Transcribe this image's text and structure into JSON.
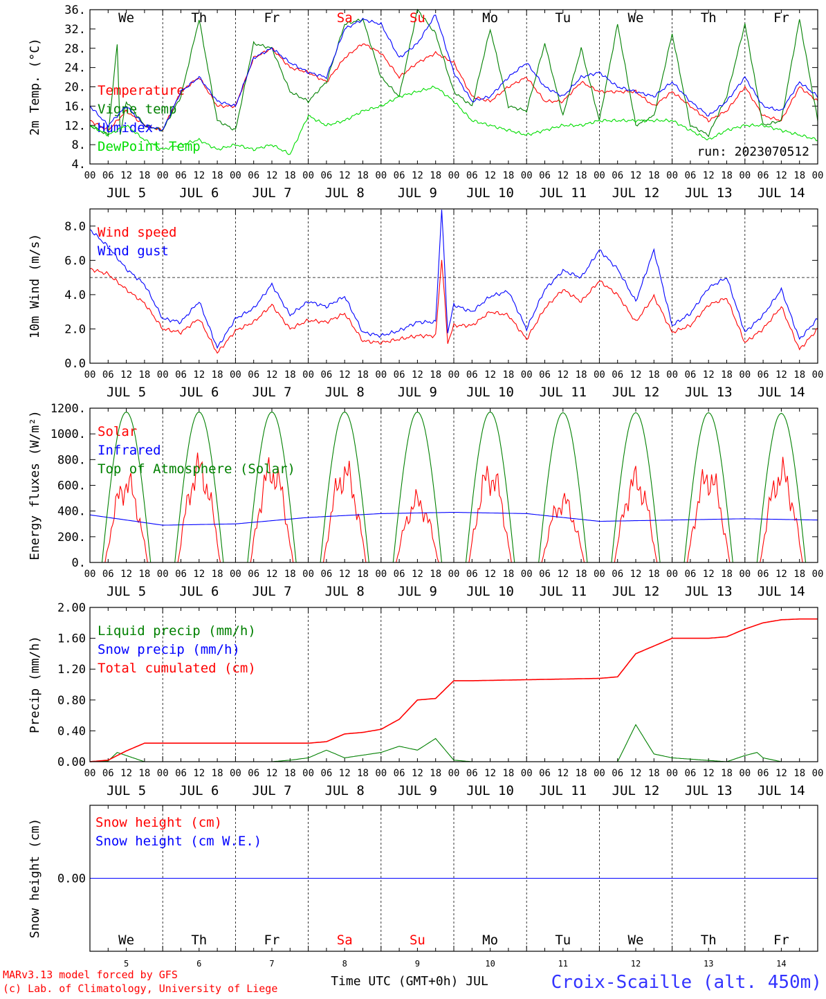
{
  "days": [
    "JUL 5",
    "JUL 6",
    "JUL 7",
    "JUL 8",
    "JUL 9",
    "JUL 10",
    "JUL 11",
    "JUL 12",
    "JUL 13",
    "JUL 14"
  ],
  "hour_ticks": [
    "00",
    "06",
    "12",
    "18"
  ],
  "final_tick": "00",
  "weekdays": [
    {
      "label": "We",
      "color": "#000000"
    },
    {
      "label": "Th",
      "color": "#000000"
    },
    {
      "label": "Fr",
      "color": "#000000"
    },
    {
      "label": "Sa",
      "color": "#ff0000"
    },
    {
      "label": "Su",
      "color": "#ff0000"
    },
    {
      "label": "Mo",
      "color": "#000000"
    },
    {
      "label": "Tu",
      "color": "#000000"
    },
    {
      "label": "We",
      "color": "#000000"
    },
    {
      "label": "Th",
      "color": "#000000"
    },
    {
      "label": "Fr",
      "color": "#000000"
    }
  ],
  "bottom_day_numbers": [
    "5",
    "6",
    "7",
    "8",
    "9",
    "10",
    "11",
    "12",
    "13",
    "14"
  ],
  "footer": {
    "left_line1": "MARv3.13 model forced by GFS",
    "left_line2": "(c) Lab. of Climatology, University of Liege",
    "center": "Time UTC (GMT+0h) JUL",
    "right": "Croix-Scaille (alt. 450m)"
  },
  "colors": {
    "red": "#ff0000",
    "green": "#008000",
    "blue": "#0000ff",
    "lightgreen": "#00dd00",
    "purple": "#800080"
  },
  "chart_data": [
    {
      "type": "line",
      "ylabel": "2m Temp. (°C)",
      "ylim": [
        4,
        36
      ],
      "yticks": [
        "36.",
        "32.",
        "28.",
        "24.",
        "20.",
        "16.",
        "12.",
        "8.",
        "4."
      ],
      "annotation": "run: 2023070512",
      "series": [
        {
          "name": "Temperature",
          "color": "#ff0000",
          "t": [
            0,
            6,
            12,
            18,
            24,
            30,
            36,
            42,
            48,
            54,
            60,
            66,
            72,
            78,
            84,
            90,
            96,
            102,
            108,
            114,
            120,
            126,
            132,
            138,
            144,
            150,
            156,
            162,
            168,
            174,
            180,
            186,
            192,
            198,
            204,
            210,
            216,
            222,
            228,
            234,
            240
          ],
          "values": [
            13,
            11,
            15,
            12,
            11,
            19,
            22,
            16,
            16,
            26,
            28,
            24,
            23,
            21,
            26,
            29,
            27,
            22,
            25,
            27,
            25,
            18,
            17,
            20,
            22,
            17,
            17,
            21,
            19,
            19,
            19,
            16,
            19,
            16,
            13,
            15,
            20,
            14,
            13,
            20,
            17
          ]
        },
        {
          "name": "Vigne temp",
          "color": "#008000",
          "t": [
            0,
            6,
            9,
            10,
            12,
            18,
            24,
            30,
            36,
            42,
            48,
            54,
            60,
            66,
            72,
            78,
            84,
            90,
            96,
            102,
            108,
            114,
            120,
            126,
            132,
            138,
            144,
            150,
            156,
            162,
            168,
            174,
            180,
            186,
            192,
            198,
            204,
            210,
            216,
            222,
            228,
            234,
            240
          ],
          "values": [
            12,
            10,
            29,
            10,
            17,
            12,
            11,
            18,
            34,
            13,
            11,
            29,
            28,
            19,
            17,
            21,
            33,
            34,
            22,
            18,
            36,
            31,
            19,
            16,
            32,
            16,
            15,
            29,
            14,
            28,
            13,
            33,
            12,
            14,
            31,
            12,
            10,
            18,
            33,
            12,
            13,
            34,
            13
          ]
        },
        {
          "name": "Humidex",
          "color": "#0000ff",
          "t": [
            0,
            6,
            12,
            18,
            24,
            30,
            36,
            42,
            48,
            54,
            60,
            66,
            72,
            78,
            84,
            90,
            96,
            102,
            108,
            114,
            120,
            126,
            132,
            138,
            144,
            150,
            156,
            162,
            168,
            174,
            180,
            186,
            192,
            198,
            204,
            210,
            216,
            222,
            228,
            234,
            240
          ],
          "values": [
            16,
            12,
            16,
            12,
            11,
            19,
            22,
            17,
            16,
            26,
            28,
            25,
            23,
            22,
            32,
            34,
            33,
            26,
            29,
            35,
            23,
            17,
            18,
            22,
            25,
            20,
            18,
            22,
            23,
            20,
            19,
            18,
            21,
            17,
            14,
            17,
            22,
            16,
            15,
            21,
            18
          ]
        },
        {
          "name": "DewPoint Temp",
          "color": "#00dd00",
          "t": [
            0,
            6,
            12,
            18,
            24,
            30,
            36,
            42,
            48,
            54,
            60,
            66,
            72,
            78,
            84,
            90,
            96,
            102,
            108,
            114,
            120,
            126,
            132,
            138,
            144,
            150,
            156,
            162,
            168,
            174,
            180,
            186,
            192,
            198,
            204,
            210,
            216,
            222,
            228,
            234,
            240
          ],
          "values": [
            12,
            10,
            12,
            9,
            7,
            8,
            9,
            7,
            8,
            7,
            8,
            6,
            14,
            12,
            13,
            15,
            16,
            18,
            19,
            20,
            17,
            13,
            12,
            11,
            10,
            11,
            12,
            12,
            13,
            13,
            13,
            13,
            13,
            11,
            9,
            11,
            12,
            12,
            11,
            10,
            9
          ]
        }
      ]
    },
    {
      "type": "line",
      "ylabel": "10m Wind (m/s)",
      "ylim": [
        0,
        9
      ],
      "yticks": [
        "8.0",
        "6.0",
        "4.0",
        "2.0",
        "0.0"
      ],
      "reference_line": 5,
      "series": [
        {
          "name": "Wind speed",
          "color": "#ff0000",
          "t": [
            0,
            6,
            12,
            18,
            24,
            30,
            36,
            42,
            48,
            54,
            60,
            66,
            72,
            78,
            84,
            90,
            96,
            102,
            108,
            114,
            116,
            118,
            120,
            126,
            132,
            138,
            144,
            150,
            156,
            162,
            168,
            174,
            180,
            186,
            192,
            198,
            204,
            210,
            216,
            222,
            228,
            234,
            240
          ],
          "values": [
            5.5,
            5.2,
            4.3,
            3.5,
            2.0,
            1.8,
            2.6,
            0.6,
            1.9,
            2.4,
            3.4,
            2.0,
            2.5,
            2.4,
            2.9,
            1.3,
            1.2,
            1.4,
            1.6,
            1.6,
            6.1,
            1.2,
            2.2,
            2.2,
            3.0,
            2.8,
            1.4,
            3.2,
            4.3,
            3.6,
            4.8,
            4.0,
            2.4,
            3.9,
            1.8,
            2.2,
            3.4,
            3.8,
            1.2,
            2.0,
            3.3,
            0.8,
            2.0
          ]
        },
        {
          "name": "Wind gust",
          "color": "#0000ff",
          "t": [
            0,
            6,
            12,
            18,
            24,
            30,
            36,
            42,
            48,
            54,
            60,
            66,
            72,
            78,
            84,
            90,
            96,
            102,
            108,
            114,
            116,
            118,
            120,
            126,
            132,
            138,
            144,
            150,
            156,
            162,
            168,
            174,
            180,
            186,
            192,
            198,
            204,
            210,
            216,
            222,
            228,
            234,
            240
          ],
          "values": [
            7.8,
            6.8,
            5.5,
            4.6,
            2.6,
            2.4,
            3.6,
            0.9,
            2.6,
            3.2,
            4.6,
            2.8,
            3.6,
            3.3,
            3.9,
            1.8,
            1.6,
            1.9,
            2.4,
            2.4,
            9.0,
            1.8,
            3.4,
            3.0,
            3.9,
            4.2,
            2.0,
            4.3,
            5.4,
            5.0,
            6.6,
            5.5,
            3.6,
            6.6,
            2.2,
            2.9,
            4.4,
            5.0,
            1.8,
            2.8,
            4.3,
            1.4,
            2.6
          ]
        }
      ]
    },
    {
      "type": "line",
      "ylabel": "Energy fluxes (W/m²)",
      "ylim": [
        0,
        1200
      ],
      "yticks": [
        "1200.",
        "1000.",
        "800.",
        "600.",
        "400.",
        "200.",
        "0."
      ],
      "series": [
        {
          "name": "Solar",
          "color": "#ff0000",
          "daily_peak": [
            750,
            890,
            880,
            850,
            580,
            840,
            580,
            780,
            820,
            840
          ]
        },
        {
          "name": "Infrared",
          "color": "#0000ff",
          "t": [
            0,
            24,
            48,
            72,
            96,
            120,
            144,
            168,
            192,
            216,
            240
          ],
          "values": [
            370,
            290,
            300,
            350,
            380,
            390,
            380,
            320,
            330,
            340,
            330
          ]
        },
        {
          "name": "Top of Atmosphere (Solar)",
          "color": "#008000",
          "daily_peak": [
            1170,
            1170,
            1170,
            1170,
            1170,
            1170,
            1165,
            1165,
            1165,
            1160
          ]
        }
      ]
    },
    {
      "type": "line",
      "ylabel": "Precip (mm/h)",
      "ylim": [
        0,
        2
      ],
      "yticks": [
        "2.00",
        "1.60",
        "1.20",
        "0.80",
        "0.40",
        "0.00"
      ],
      "series": [
        {
          "name": "Liquid precip (mm/h)",
          "color": "#008000",
          "t": [
            0,
            6,
            9,
            12,
            18,
            24,
            60,
            66,
            72,
            78,
            84,
            96,
            102,
            108,
            114,
            120,
            126,
            174,
            180,
            186,
            192,
            210,
            216,
            220,
            222,
            228,
            240
          ],
          "values": [
            0,
            0.01,
            0.12,
            0.08,
            0,
            0,
            0,
            0.02,
            0.05,
            0.15,
            0.05,
            0.12,
            0.2,
            0.15,
            0.3,
            0.02,
            0,
            0,
            0.48,
            0.1,
            0.05,
            0,
            0.08,
            0.12,
            0.05,
            0,
            0
          ]
        },
        {
          "name": "Snow precip (mm/h)",
          "color": "#0000ff",
          "t": [
            0,
            240
          ],
          "values": [
            0,
            0
          ]
        },
        {
          "name": "Total cumulated (cm)",
          "color": "#ff0000",
          "t": [
            0,
            6,
            12,
            18,
            72,
            78,
            84,
            90,
            96,
            102,
            108,
            114,
            120,
            126,
            168,
            174,
            180,
            186,
            192,
            204,
            210,
            216,
            222,
            228,
            234,
            240
          ],
          "values": [
            0,
            0.02,
            0.14,
            0.24,
            0.24,
            0.26,
            0.36,
            0.38,
            0.42,
            0.55,
            0.8,
            0.82,
            1.05,
            1.05,
            1.08,
            1.1,
            1.4,
            1.5,
            1.6,
            1.6,
            1.62,
            1.72,
            1.8,
            1.84,
            1.85,
            1.85
          ]
        }
      ]
    },
    {
      "type": "line",
      "ylabel": "Snow height (cm)",
      "ylim": [
        -1,
        1
      ],
      "yticks": [
        "0.00"
      ],
      "series": [
        {
          "name": "Snow height (cm)",
          "color": "#ff0000",
          "t": [
            0,
            240
          ],
          "values": [
            0,
            0
          ]
        },
        {
          "name": "Snow height (cm W.E.)",
          "color": "#0000ff",
          "t": [
            0,
            240
          ],
          "values": [
            0,
            0
          ]
        }
      ]
    }
  ]
}
